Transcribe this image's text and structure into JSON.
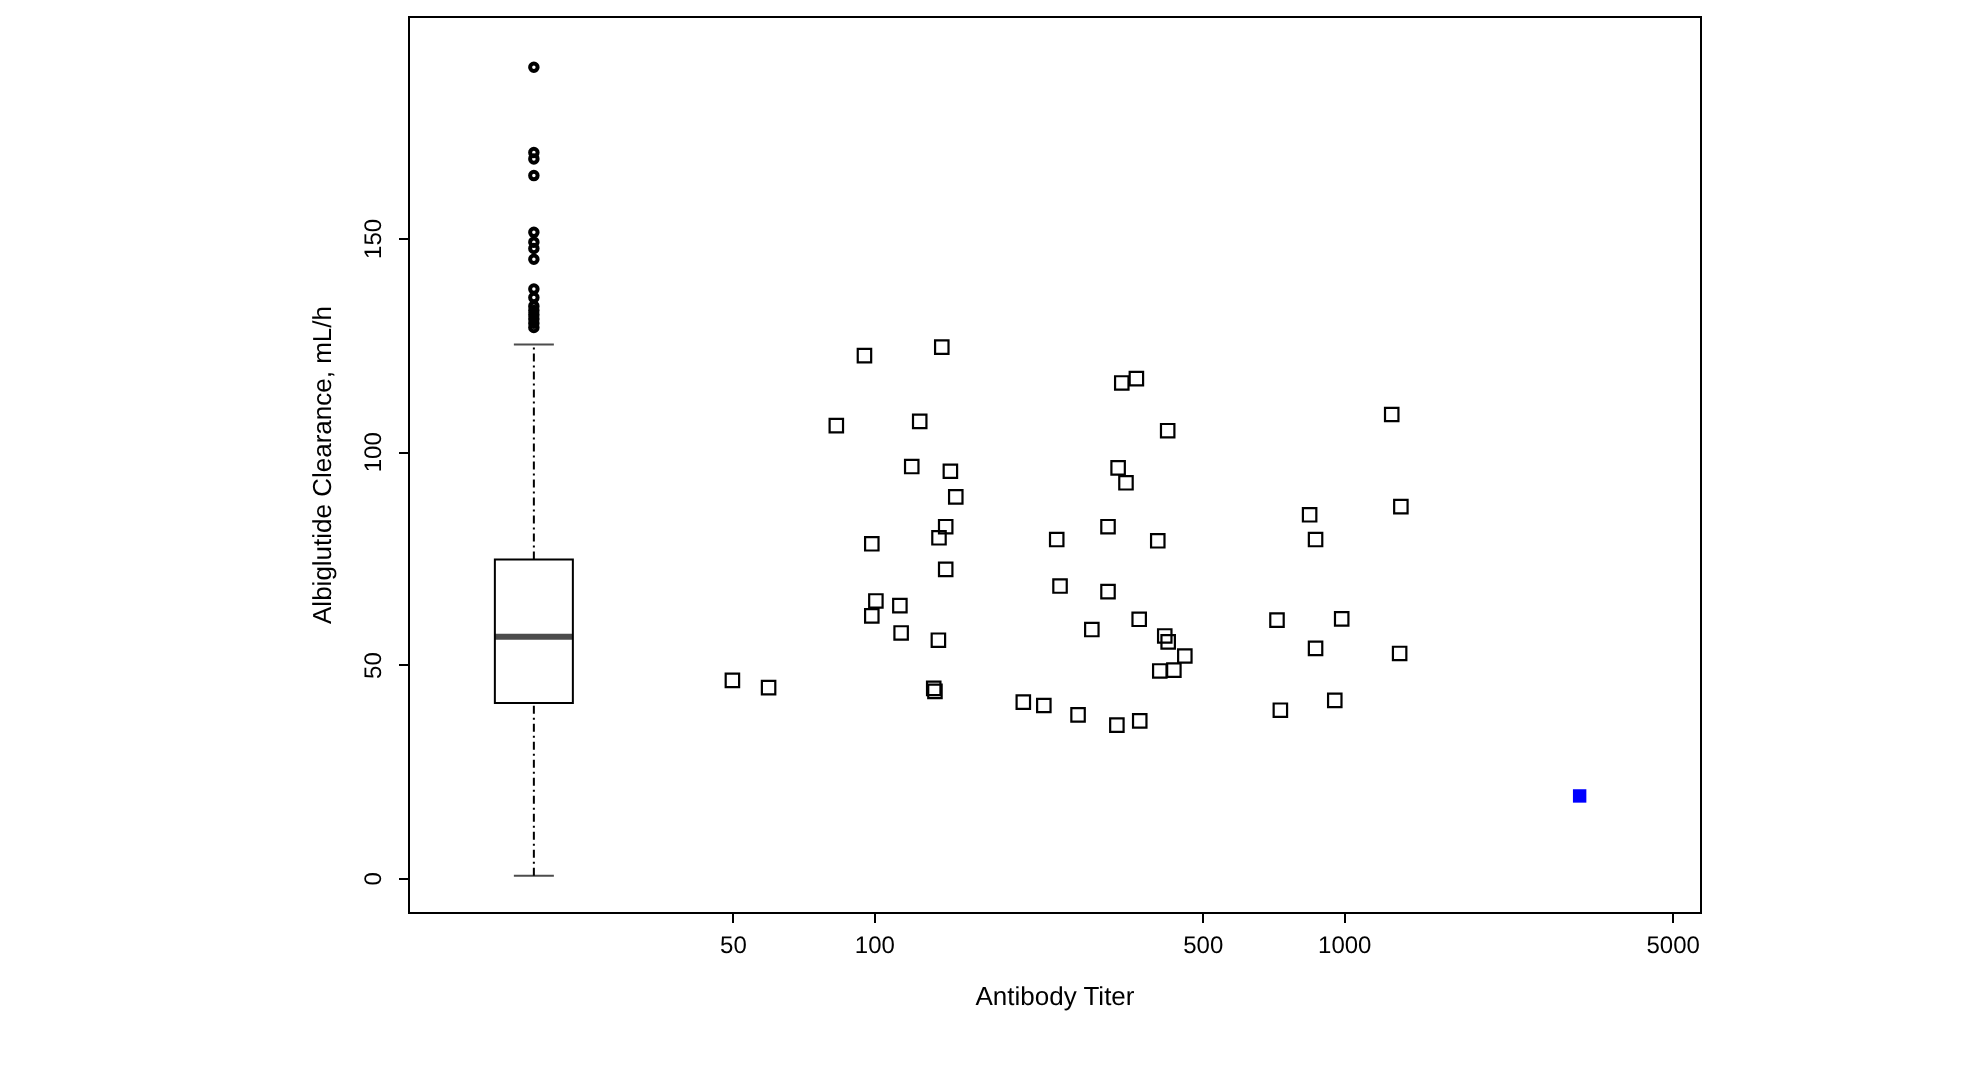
{
  "chart_data": {
    "type": "scatter",
    "xlabel": "Antibody Titer",
    "ylabel": "Albiglutide Clearance, mL/h",
    "log": "x",
    "xlim": [
      10.2,
      5730
    ],
    "xticks": [
      50,
      100,
      500,
      1000,
      5000
    ],
    "ylim": [
      -8,
      202
    ],
    "yticks": [
      0,
      50,
      100,
      150
    ],
    "grid": false,
    "marker": "square",
    "series": [
      {
        "type": "box",
        "color": "#000000",
        "x": [
          18.9
        ],
        "boxes": [
          {
            "low": 0.5,
            "q1": 41,
            "median": 56.5,
            "q3": 74.6,
            "high": 125,
            "outliers": [
              190,
              170,
              168.5,
              164.6,
              151.3,
              149,
              147.5,
              145,
              138,
              136,
              134,
              133,
              132,
              131,
              130,
              129
            ]
          }
        ]
      },
      {
        "type": "scatter",
        "color": "#000000",
        "x": [
          95.5,
          139.5,
          83.2,
          125.2,
          120.4,
          145.5,
          149.4,
          142.2,
          137.6,
          99,
          142.2,
          101,
          99,
          113.6,
          114.3,
          137.2,
          50,
          59.7,
          134.1,
          134.9,
          337,
          362,
          422,
          331,
          344,
          245,
          315,
          402,
          249,
          315,
          291,
          367,
          416,
          423,
          459,
          406,
          435,
          208,
          230,
          272,
          329,
          368,
          1265,
          1323,
          846,
          871,
          721,
          990,
          871,
          1315,
          733,
          957
        ],
        "values": [
          122.4,
          124.4,
          106,
          107,
          96.4,
          95.3,
          89.3,
          82.3,
          79.7,
          78.3,
          72.3,
          64.9,
          61.4,
          63.8,
          57.4,
          55.7,
          46.3,
          44.6,
          44.4,
          43.7,
          116,
          117,
          104.8,
          96.1,
          92.6,
          79.3,
          82.3,
          79,
          68.4,
          67.1,
          58.2,
          60.6,
          56.7,
          55.3,
          52,
          48.5,
          48.7,
          41.2,
          40.4,
          38.2,
          35.8,
          36.8,
          108.6,
          87,
          85.1,
          79.3,
          60.4,
          60.7,
          53.8,
          52.6,
          39.3,
          41.6
        ]
      },
      {
        "type": "scatter",
        "color": "#0000ff",
        "x": [
          3177
        ],
        "values": [
          19.2
        ]
      }
    ]
  }
}
